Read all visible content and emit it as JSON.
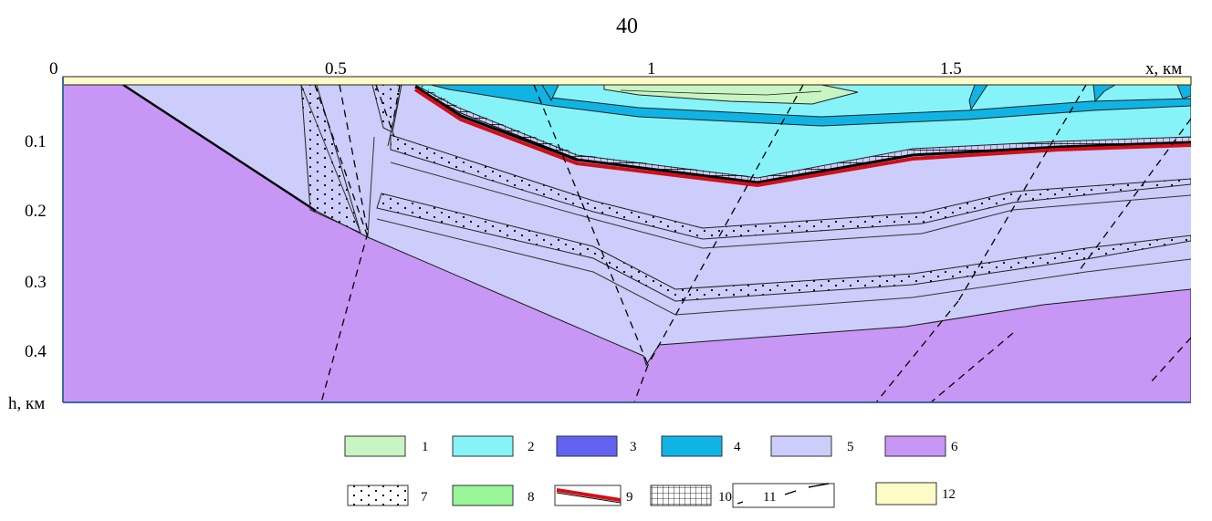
{
  "page_number": "40",
  "axis": {
    "x_label": "x, км",
    "y_label": "h, км",
    "x_ticks": [
      "0.5",
      "1",
      "1.5"
    ],
    "y_ticks": [
      "0",
      "0.1",
      "0.2",
      "0.3",
      "0.4"
    ]
  },
  "legend": [
    {
      "id": "1",
      "color": "#c8f5c3"
    },
    {
      "id": "2",
      "color": "#86f3f9"
    },
    {
      "id": "3",
      "color": "#6262f0"
    },
    {
      "id": "4",
      "color": "#10b4e4"
    },
    {
      "id": "5",
      "color": "#cccdfa"
    },
    {
      "id": "6",
      "color": "#c896f5"
    },
    {
      "id": "7",
      "pattern": "dots"
    },
    {
      "id": "8",
      "color": "#98f698"
    },
    {
      "id": "9",
      "pattern": "red-line"
    },
    {
      "id": "10",
      "pattern": "grid"
    },
    {
      "id": "11",
      "pattern": "dashed-line"
    },
    {
      "id": "12",
      "color": "#fdfbc6"
    }
  ],
  "colors": {
    "basement": "#c896f5",
    "sediment": "#cccdfa",
    "aquifer": "#86f3f9",
    "clay_band": "#10b4e4",
    "lens": "#c8f5c3",
    "surface_strip": "#fdfbc6",
    "red_layer": "#d0101a"
  }
}
